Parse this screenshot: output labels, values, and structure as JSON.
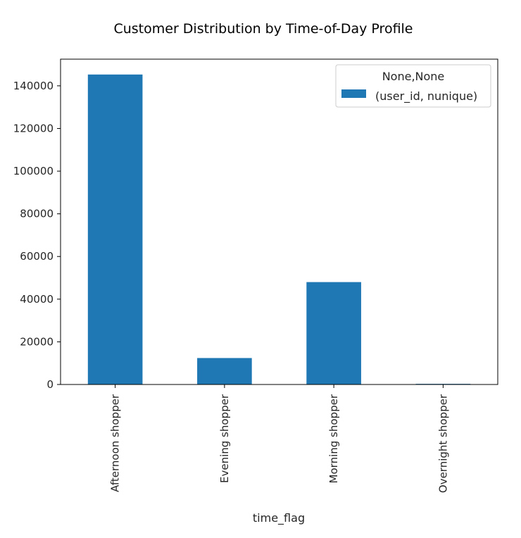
{
  "chart_data": {
    "type": "bar",
    "title": "Customer Distribution by Time-of-Day Profile",
    "xlabel": "time_flag",
    "ylabel": "",
    "categories": [
      "Afternoon shopper",
      "Evening shopper",
      "Morning shopper",
      "Overnight shopper"
    ],
    "series": [
      {
        "name": "(user_id, nunique)",
        "values": [
          145300,
          12400,
          48000,
          300
        ],
        "color": "#1f77b4"
      }
    ],
    "ylim": [
      0,
      152500
    ],
    "yticks": [
      0,
      20000,
      40000,
      60000,
      80000,
      100000,
      120000,
      140000
    ],
    "ytick_labels": [
      "0",
      "20000",
      "40000",
      "60000",
      "80000",
      "100000",
      "120000",
      "140000"
    ],
    "legend": {
      "title": "None,None",
      "placement": "top-right"
    },
    "grid": false
  }
}
